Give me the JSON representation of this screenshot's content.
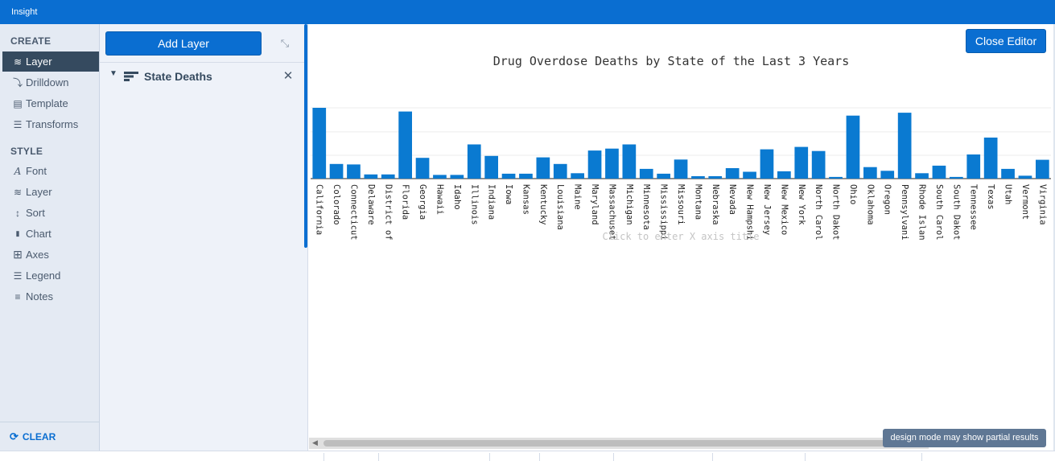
{
  "app": {
    "title": "Insight"
  },
  "sidebar": {
    "create_title": "CREATE",
    "create_items": [
      {
        "label": "Layer",
        "icon": "layers-icon",
        "glyph": "≋",
        "active": true
      },
      {
        "label": "Drilldown",
        "icon": "drilldown-icon",
        "glyph": "⤵",
        "active": false
      },
      {
        "label": "Template",
        "icon": "template-icon",
        "glyph": "▤",
        "active": false
      },
      {
        "label": "Transforms",
        "icon": "transforms-icon",
        "glyph": "☰",
        "active": false
      }
    ],
    "style_title": "STYLE",
    "style_items": [
      {
        "label": "Font",
        "icon": "font-icon",
        "glyph": "A"
      },
      {
        "label": "Layer",
        "icon": "layers-icon",
        "glyph": "≋"
      },
      {
        "label": "Sort",
        "icon": "sort-icon",
        "glyph": "↕"
      },
      {
        "label": "Chart",
        "icon": "chart-icon",
        "glyph": "▮"
      },
      {
        "label": "Axes",
        "icon": "axes-icon",
        "glyph": "⊞"
      },
      {
        "label": "Legend",
        "icon": "legend-icon",
        "glyph": "☰"
      },
      {
        "label": "Notes",
        "icon": "notes-icon",
        "glyph": "≡"
      }
    ],
    "clear_label": "CLEAR"
  },
  "layer_panel": {
    "add_layer_label": "Add Layer",
    "layers": [
      {
        "name": "State Deaths",
        "expanded": true
      }
    ]
  },
  "editor": {
    "close_label": "Close Editor",
    "status_note": "design mode may show partial results"
  },
  "colors": {
    "accent": "#0a6ed1",
    "bar": "#0a7ad1",
    "sidebar_active": "#354a5f"
  },
  "chart_data": {
    "type": "bar",
    "title": "Drug Overdose Deaths by State of the Last 3 Years",
    "xlabel": "Click to enter X axis title",
    "ylabel": "",
    "ylim": [
      0,
      29
    ],
    "grid": true,
    "categories": [
      "California",
      "Colorado",
      "Connecticut",
      "Delaware",
      "District of",
      "Florida",
      "Georgia",
      "Hawaii",
      "Idaho",
      "Illinois",
      "Indiana",
      "Iowa",
      "Kansas",
      "Kentucky",
      "Louisiana",
      "Maine",
      "Maryland",
      "Massachuset",
      "Michigan",
      "Minnesota",
      "Mississippi",
      "Missouri",
      "Montana",
      "Nebraska",
      "Nevada",
      "New Hampshi",
      "New Jersey",
      "New Mexico",
      "New York",
      "North Carol",
      "North Dakot",
      "Ohio",
      "Oklahoma",
      "Oregon",
      "Pennsylvani",
      "Rhode Islan",
      "South Carol",
      "South Dakot",
      "Tennessee",
      "Texas",
      "Utah",
      "Vermont",
      "Virginia"
    ],
    "values": [
      29,
      6,
      5.8,
      1.7,
      1.7,
      27.5,
      8.5,
      1.5,
      1.5,
      14,
      9.3,
      2,
      2,
      8.7,
      6,
      2.2,
      11.5,
      12.3,
      14,
      4,
      2,
      7.8,
      1,
      1,
      4.3,
      2.8,
      12,
      3,
      13,
      11.3,
      0.7,
      25.8,
      4.7,
      3.2,
      27,
      2.2,
      5.3,
      0.7,
      9.9,
      16.8,
      4,
      1.2,
      7.7
    ]
  }
}
